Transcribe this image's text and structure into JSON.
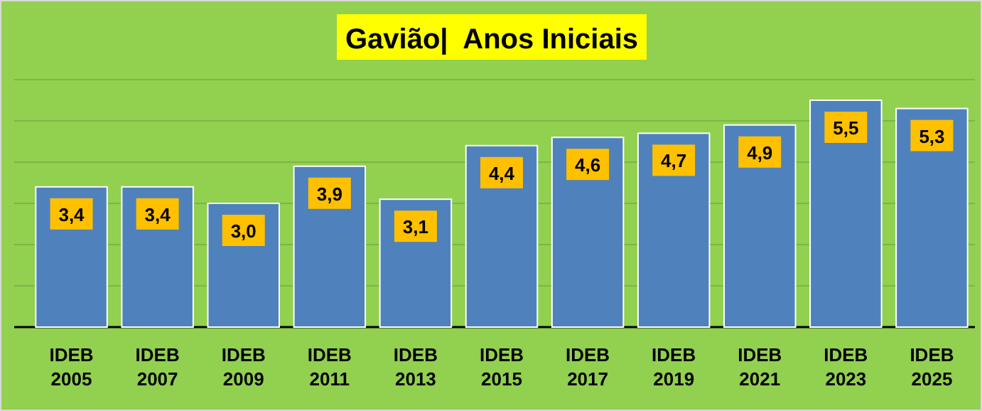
{
  "chart_data": {
    "type": "bar",
    "title": "Gavião|  Anos Iniciais",
    "categories": [
      "IDEB 2005",
      "IDEB 2007",
      "IDEB 2009",
      "IDEB 2011",
      "IDEB 2013",
      "IDEB 2015",
      "IDEB 2017",
      "IDEB 2019",
      "IDEB 2021",
      "IDEB 2023",
      "IDEB 2025"
    ],
    "values": [
      3.4,
      3.4,
      3.0,
      3.9,
      3.1,
      4.4,
      4.6,
      4.7,
      4.9,
      5.5,
      5.3
    ],
    "value_labels": [
      "3,4",
      "3,4",
      "3,0",
      "3,9",
      "3,1",
      "4,4",
      "4,6",
      "4,7",
      "4,9",
      "5,5",
      "5,3"
    ],
    "color": "#4f81bd",
    "ylim": [
      0,
      6
    ],
    "yticks": [
      {
        "value": 0,
        "label": null
      },
      {
        "value": 1,
        "label": null
      },
      {
        "value": 2,
        "label": null
      },
      {
        "value": 3,
        "label": null
      },
      {
        "value": 4,
        "label": null
      },
      {
        "value": 5,
        "label": null
      },
      {
        "value": 6,
        "label": null
      }
    ],
    "grid": "y",
    "tick_labels": "x"
  }
}
